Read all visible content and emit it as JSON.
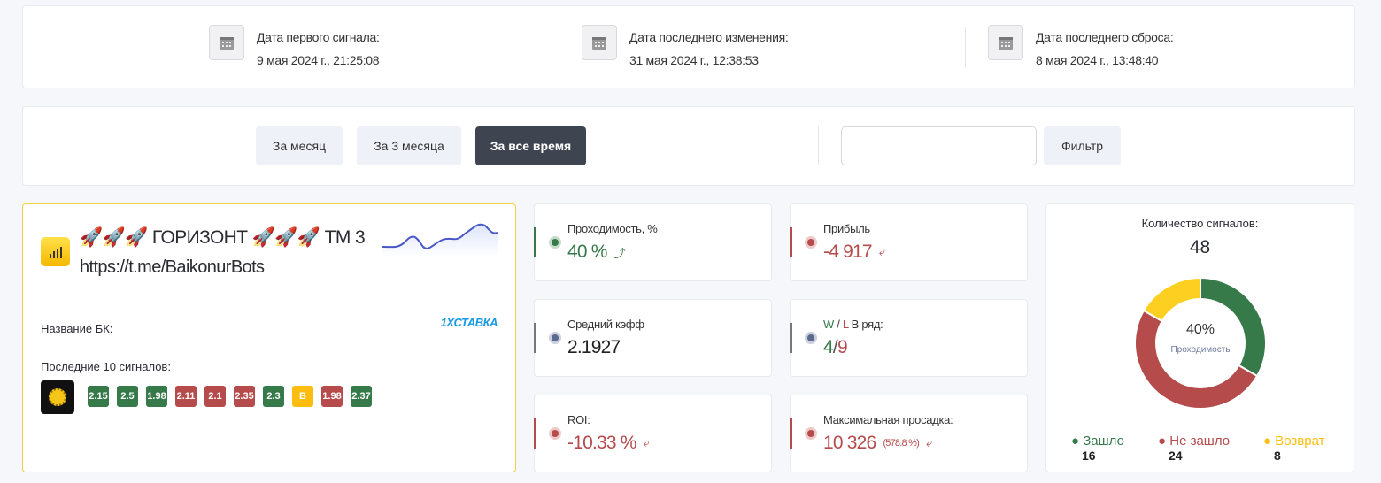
{
  "dates": [
    {
      "label": "Дата первого сигнала:",
      "value": "9 мая 2024 г., 21:25:08",
      "icon": "calendar-icon"
    },
    {
      "label": "Дата последнего изменения:",
      "value": "31 мая 2024 г., 12:38:53",
      "icon": "calendar-icon"
    },
    {
      "label": "Дата последнего сброса:",
      "value": "8 мая 2024 г., 13:48:40",
      "icon": "calendar-icon"
    }
  ],
  "periods": [
    {
      "label": "За месяц"
    },
    {
      "label": "За 3 месяца"
    },
    {
      "label": "За все время",
      "active": true
    }
  ],
  "filter": {
    "value": "",
    "button": "Фильтр"
  },
  "channel": {
    "title": "🚀🚀🚀 ГОРИЗОНТ 🚀🚀🚀 ТМ 3",
    "link": "https://t.me/BaikonurBots",
    "bk_label": "Название БК:",
    "bk_logo": "1XСТАВКА",
    "last_label": "Последние 10 сигналов:",
    "sport_icon": "football-icon",
    "signals": [
      {
        "v": "2.15",
        "s": "win"
      },
      {
        "v": "2.5",
        "s": "win"
      },
      {
        "v": "1.98",
        "s": "win"
      },
      {
        "v": "2.11",
        "s": "loss"
      },
      {
        "v": "2.1",
        "s": "loss"
      },
      {
        "v": "2.35",
        "s": "loss"
      },
      {
        "v": "2.3",
        "s": "win"
      },
      {
        "v": "В",
        "s": "refund"
      },
      {
        "v": "1.98",
        "s": "loss"
      },
      {
        "v": "2.37",
        "s": "win"
      }
    ]
  },
  "metrics": {
    "pass": {
      "label": "Проходимость, %",
      "value": "40 %",
      "trend": "up"
    },
    "profit": {
      "label": "Прибыль",
      "value": "-4 917",
      "trend": "down"
    },
    "avg": {
      "label": "Средний кэфф",
      "value": "2.1927"
    },
    "wl": {
      "label_w": "W",
      "label_sep": " / ",
      "label_l": "L",
      "label_rest": " В ряд:",
      "w": "4",
      "sep": "/",
      "l": "9"
    },
    "roi": {
      "label": "ROI:",
      "value": "-10.33 %",
      "trend": "down"
    },
    "dd": {
      "label": "Максимальная просадка:",
      "value": "10 326",
      "extra": "(578.8 %)",
      "trend": "down"
    }
  },
  "signals_chart": {
    "title": "Количество сигналов:",
    "total": "48",
    "center_value": "40%",
    "center_label": "Проходимость",
    "chart_data": {
      "type": "pie",
      "categories": [
        "Зашло",
        "Не зашло",
        "Возврат"
      ],
      "values": [
        16,
        24,
        8
      ],
      "colors": [
        "#367a4a",
        "#b54b4b",
        "#fdcf20"
      ]
    }
  },
  "colors": {
    "green": "#367a4a",
    "red": "#b54b4b",
    "yellow": "#fdbd10",
    "accent_border": "#f5d142"
  }
}
